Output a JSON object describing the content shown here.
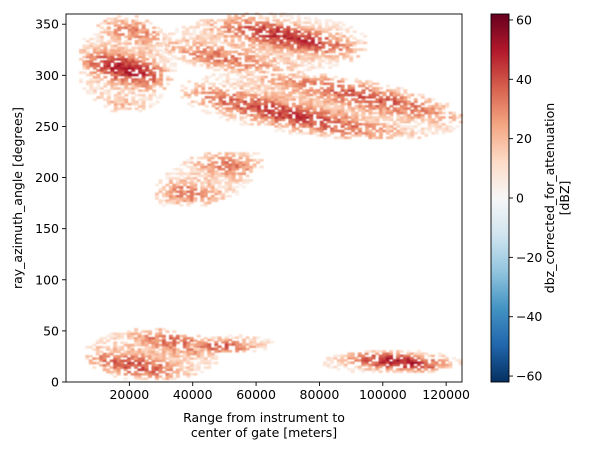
{
  "chart_data": {
    "type": "heatmap",
    "xlabel": "Range from instrument to\ncenter of gate [meters]",
    "ylabel": "ray_azimuth_angle [degrees]",
    "xlim": [
      0,
      125000
    ],
    "ylim": [
      0,
      360
    ],
    "x_ticks": [
      20000,
      40000,
      60000,
      80000,
      100000,
      120000
    ],
    "y_ticks": [
      0,
      50,
      100,
      150,
      200,
      250,
      300,
      350
    ],
    "colorbar": {
      "label": "dbz_corrected_for_attenuation\n[dBZ]",
      "vmin": -62,
      "vmax": 62,
      "ticks": [
        -60,
        -40,
        -20,
        0,
        20,
        40,
        60
      ],
      "colormap": "RdBu_r",
      "colors": [
        "#053061",
        "#2166ac",
        "#4393c3",
        "#92c5de",
        "#d1e5f0",
        "#f7f7f7",
        "#fddbc7",
        "#f4a582",
        "#d6604d",
        "#b2182b",
        "#67001f"
      ]
    },
    "echo_regions": [
      {
        "range": [
          3000,
          34000
        ],
        "azimuth": [
          262,
          358
        ],
        "peak_dbz": 50
      },
      {
        "range": [
          35000,
          125000
        ],
        "azimuth": [
          238,
          300
        ],
        "peak_dbz": 52
      },
      {
        "range": [
          30000,
          95000
        ],
        "azimuth": [
          300,
          360
        ],
        "peak_dbz": 50
      },
      {
        "range": [
          27000,
          62000
        ],
        "azimuth": [
          172,
          224
        ],
        "peak_dbz": 40
      },
      {
        "range": [
          5000,
          48000
        ],
        "azimuth": [
          0,
          52
        ],
        "peak_dbz": 52
      },
      {
        "range": [
          38000,
          66000
        ],
        "azimuth": [
          27,
          45
        ],
        "peak_dbz": 52
      },
      {
        "range": [
          80000,
          125000
        ],
        "azimuth": [
          7,
          30
        ],
        "peak_dbz": 50
      }
    ]
  }
}
